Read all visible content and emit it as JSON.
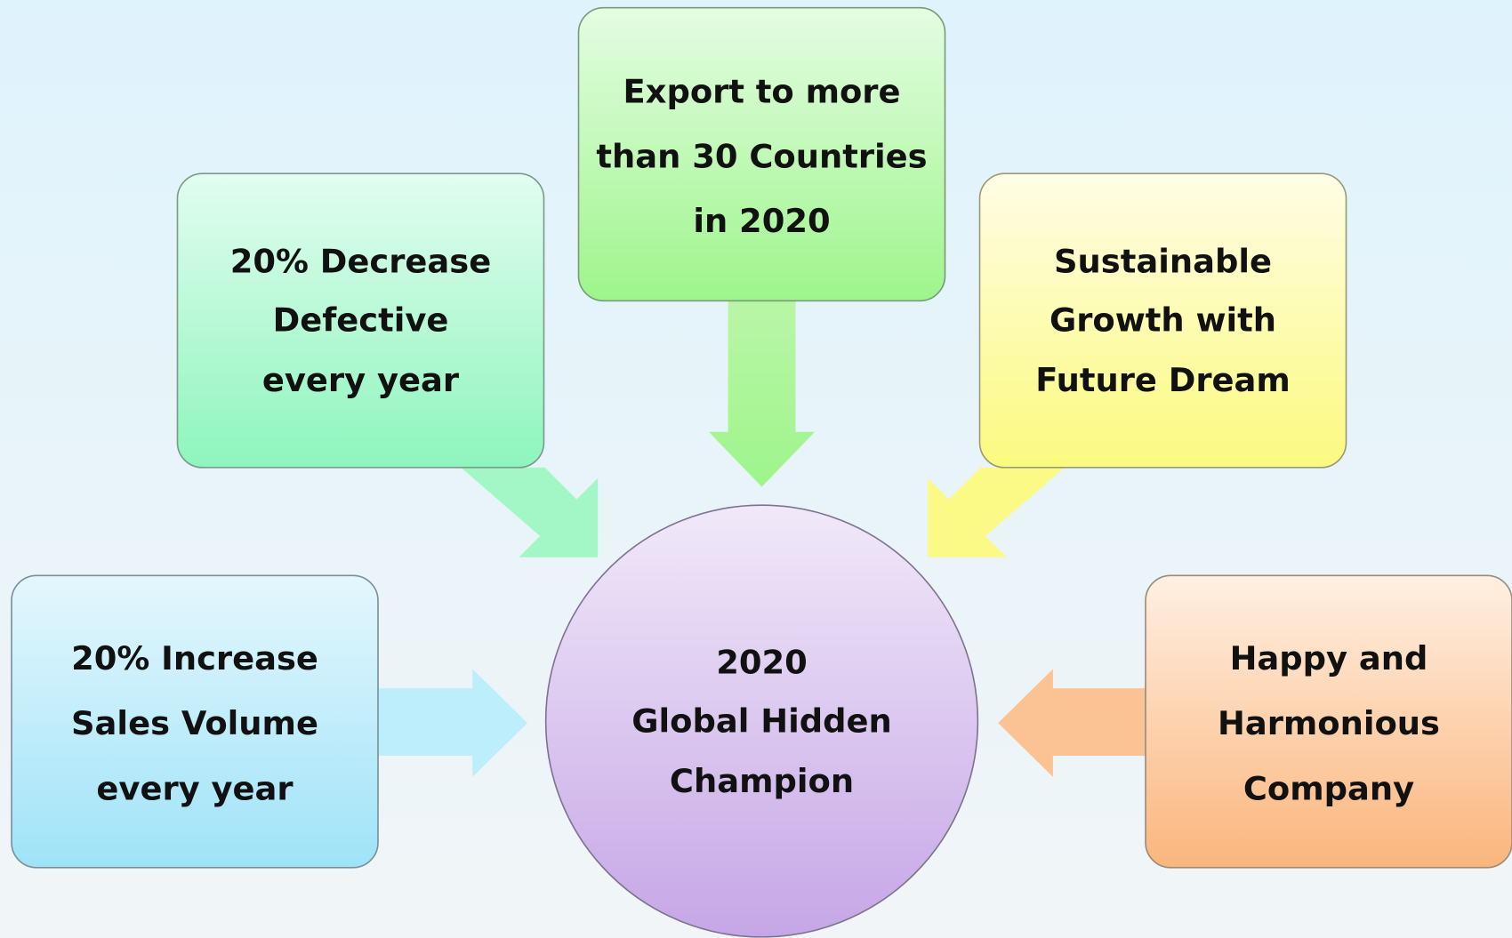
{
  "center": {
    "lines": [
      "2020",
      "Global Hidden",
      "Champion"
    ]
  },
  "nodes": [
    {
      "lines": [
        "Export to more",
        "than 30 Countries",
        "in 2020"
      ]
    },
    {
      "lines": [
        "20% Decrease",
        "Defective",
        "every year"
      ]
    },
    {
      "lines": [
        "Sustainable",
        "Growth with",
        "Future Dream"
      ]
    },
    {
      "lines": [
        "20% Increase",
        "Sales Volume",
        "every year"
      ]
    },
    {
      "lines": [
        "Happy and",
        "Harmonious",
        "Company"
      ]
    }
  ]
}
